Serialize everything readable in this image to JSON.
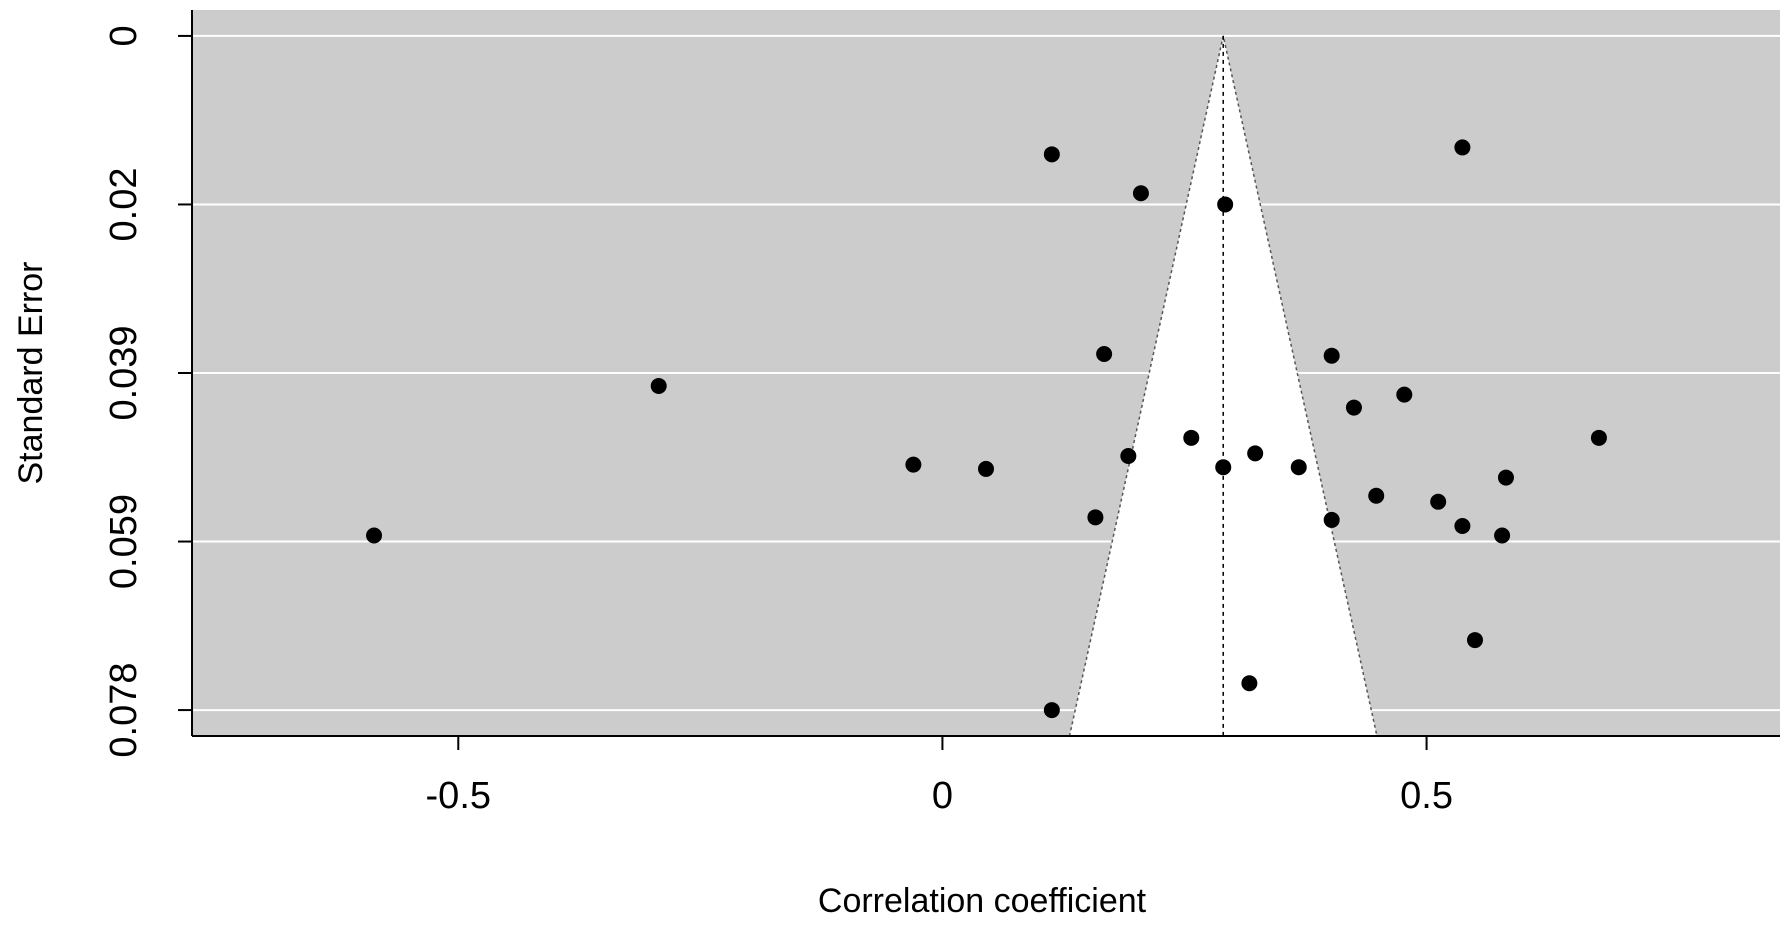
{
  "chart_data": {
    "type": "scatter",
    "title": "",
    "xlabel": "Correlation coefficient",
    "ylabel": "Standard Error",
    "x_ticks": [
      "-0.5",
      "0",
      "0.5"
    ],
    "x_tick_values": [
      -0.5,
      0,
      0.5
    ],
    "y_ticks": [
      "0",
      "0.02",
      "0.039",
      "0.059",
      "0.078"
    ],
    "y_tick_values": [
      0,
      0.0195,
      0.039,
      0.0585,
      0.078
    ],
    "xlim": [
      -0.775,
      0.865
    ],
    "ylim": [
      0.081,
      -0.003
    ],
    "y_reversed": true,
    "grid": "horizontal",
    "background_color": "#cccccc",
    "funnel_fill": "#ffffff",
    "point_color": "#000000",
    "funnel": {
      "center": 0.29,
      "se_max": 0.081,
      "z": 1.96
    },
    "points": [
      {
        "x": -0.587,
        "y": 0.0578
      },
      {
        "x": -0.293,
        "y": 0.0405
      },
      {
        "x": -0.03,
        "y": 0.0496
      },
      {
        "x": 0.045,
        "y": 0.0501
      },
      {
        "x": 0.113,
        "y": 0.0137
      },
      {
        "x": 0.113,
        "y": 0.078
      },
      {
        "x": 0.158,
        "y": 0.0557
      },
      {
        "x": 0.167,
        "y": 0.0368
      },
      {
        "x": 0.192,
        "y": 0.0486
      },
      {
        "x": 0.205,
        "y": 0.0182
      },
      {
        "x": 0.257,
        "y": 0.0465
      },
      {
        "x": 0.29,
        "y": 0.0499
      },
      {
        "x": 0.292,
        "y": 0.0195
      },
      {
        "x": 0.317,
        "y": 0.0749
      },
      {
        "x": 0.323,
        "y": 0.0483
      },
      {
        "x": 0.368,
        "y": 0.0499
      },
      {
        "x": 0.402,
        "y": 0.037
      },
      {
        "x": 0.402,
        "y": 0.056
      },
      {
        "x": 0.425,
        "y": 0.043
      },
      {
        "x": 0.448,
        "y": 0.0532
      },
      {
        "x": 0.477,
        "y": 0.0415
      },
      {
        "x": 0.512,
        "y": 0.0539
      },
      {
        "x": 0.537,
        "y": 0.0129
      },
      {
        "x": 0.537,
        "y": 0.0567
      },
      {
        "x": 0.55,
        "y": 0.0699
      },
      {
        "x": 0.578,
        "y": 0.0578
      },
      {
        "x": 0.582,
        "y": 0.0511
      },
      {
        "x": 0.678,
        "y": 0.0465
      }
    ]
  }
}
